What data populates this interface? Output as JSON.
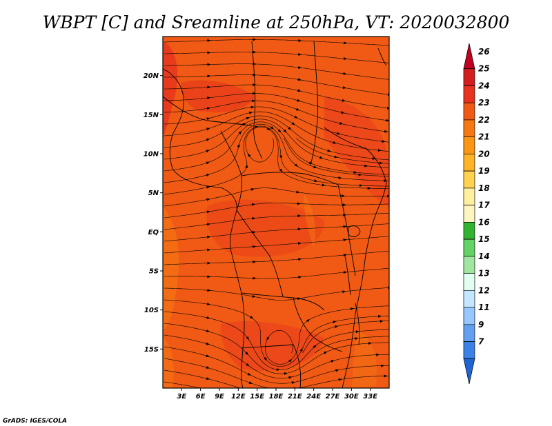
{
  "title": "WBPT [C] and Sreamline at 250hPa, VT: 2020032800",
  "credit": "GrADS: IGES/COLA",
  "map": {
    "lon_range": [
      0,
      36
    ],
    "lat_range": [
      -20,
      25
    ],
    "lat_ticks": [
      {
        "value": 20,
        "label": "20N"
      },
      {
        "value": 15,
        "label": "15N"
      },
      {
        "value": 10,
        "label": "10N"
      },
      {
        "value": 5,
        "label": "5N"
      },
      {
        "value": 0,
        "label": "EQ"
      },
      {
        "value": -5,
        "label": "5S"
      },
      {
        "value": -10,
        "label": "10S"
      },
      {
        "value": -15,
        "label": "15S"
      }
    ],
    "lon_ticks": [
      {
        "value": 3,
        "label": "3E"
      },
      {
        "value": 6,
        "label": "6E"
      },
      {
        "value": 9,
        "label": "9E"
      },
      {
        "value": 12,
        "label": "12E"
      },
      {
        "value": 15,
        "label": "15E"
      },
      {
        "value": 18,
        "label": "18E"
      },
      {
        "value": 21,
        "label": "21E"
      },
      {
        "value": 24,
        "label": "24E"
      },
      {
        "value": 27,
        "label": "27E"
      },
      {
        "value": 30,
        "label": "30E"
      },
      {
        "value": 33,
        "label": "33E"
      }
    ],
    "dominant_fill": "#f05a14",
    "vortices": [
      {
        "name": "northern-anticyclone",
        "lon": 15.5,
        "lat": 12.0
      },
      {
        "name": "southern-anticyclone",
        "lon": 18.5,
        "lat": -15.5
      }
    ]
  },
  "colorbar": {
    "levels": [
      "26",
      "25",
      "24",
      "23",
      "22",
      "21",
      "20",
      "19",
      "18",
      "17",
      "16",
      "15",
      "14",
      "13",
      "12",
      "11",
      "9",
      "7"
    ],
    "colors": [
      "#c0001e",
      "#d21e1e",
      "#e6321e",
      "#f05a14",
      "#f57814",
      "#fa9614",
      "#ffb428",
      "#ffd250",
      "#fff0a0",
      "#fff5c0",
      "#32b432",
      "#64d264",
      "#a0e6a0",
      "#e0fff0",
      "#c4e6ff",
      "#96c8ff",
      "#64a0f0",
      "#3c82e6",
      "#1e64d2"
    ]
  }
}
